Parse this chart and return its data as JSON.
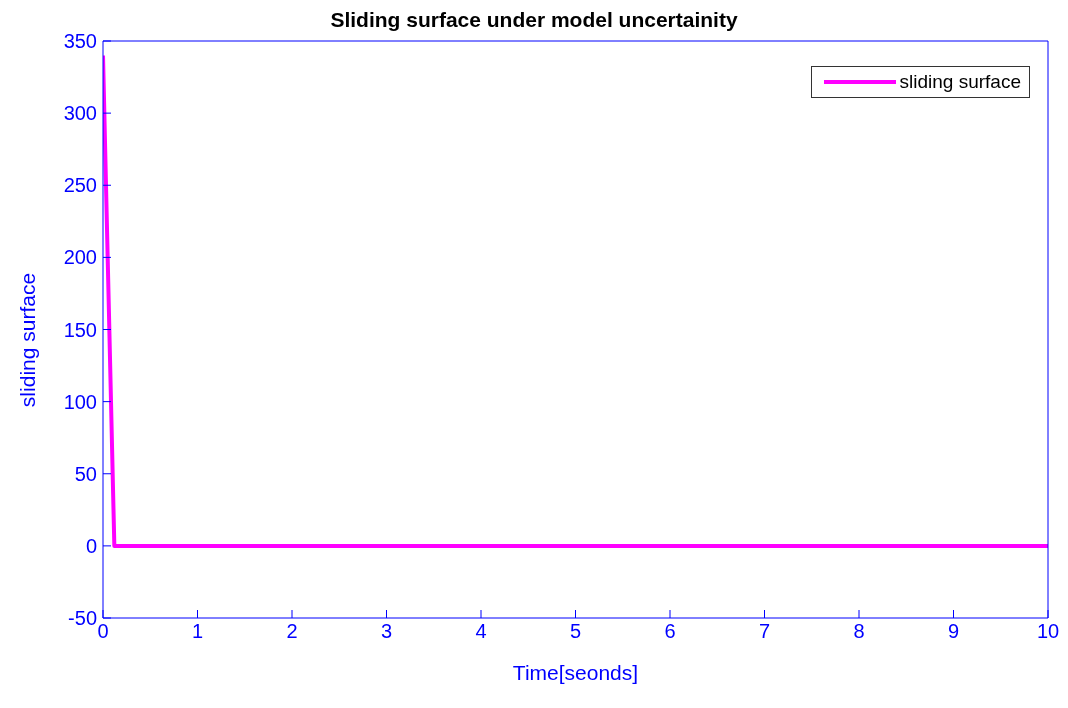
{
  "chart_data": {
    "type": "line",
    "title": "Sliding surface under model uncertainity",
    "xlabel": "Time[seonds]",
    "ylabel": "sliding surface",
    "x": [
      0,
      0.12,
      10
    ],
    "series": [
      {
        "name": "sliding surface",
        "color": "#ff00ff",
        "values": [
          340,
          0,
          0
        ]
      }
    ],
    "xlim": [
      0,
      10
    ],
    "xticks": [
      0,
      1,
      2,
      3,
      4,
      5,
      6,
      7,
      8,
      9,
      10
    ],
    "ylim": [
      -50,
      350
    ],
    "yticks": [
      -50,
      0,
      50,
      100,
      150,
      200,
      250,
      300,
      350
    ],
    "legend": "top right",
    "marker": "none",
    "line_style": "solid"
  }
}
